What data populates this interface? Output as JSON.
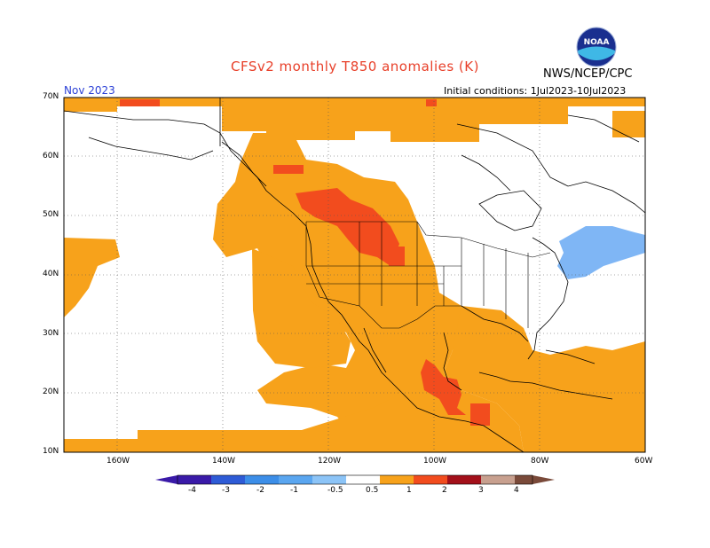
{
  "header": {
    "title": "CFSv2 monthly T850 anomalies (K)",
    "valid_month": "Nov 2023",
    "initial_conditions": "Initial conditions: 1Jul2023-10Jul2023",
    "organization": "NWS/NCEP/CPC",
    "logo_text": "NOAA"
  },
  "map": {
    "region": "North America",
    "lon_range": [
      -170,
      -60
    ],
    "lat_range": [
      10,
      70
    ],
    "lat_labels": [
      "70N",
      "60N",
      "50N",
      "40N",
      "30N",
      "20N",
      "10N"
    ],
    "lon_labels": [
      "160W",
      "140W",
      "120W",
      "100W",
      "80W",
      "60W"
    ],
    "colors": {
      "warm_0_5_to_1": "#f7a21b",
      "warm_1_to_2": "#f24c1e",
      "cool_minus1_to_minus0_5": "#7fb6f5",
      "background": "#ffffff",
      "grid": "#555555"
    }
  },
  "legend": {
    "labels": [
      "-4",
      "-3",
      "-2",
      "-1",
      "-0.5",
      "0.5",
      "1",
      "2",
      "3",
      "4"
    ],
    "colors": [
      "#3a1aa8",
      "#2e5bd6",
      "#3c8ee8",
      "#5aa6f0",
      "#8cc4f7",
      "#ffffff",
      "#f7a21b",
      "#f24c1e",
      "#a3101a",
      "#c8a08f",
      "#7a4a3a"
    ]
  }
}
